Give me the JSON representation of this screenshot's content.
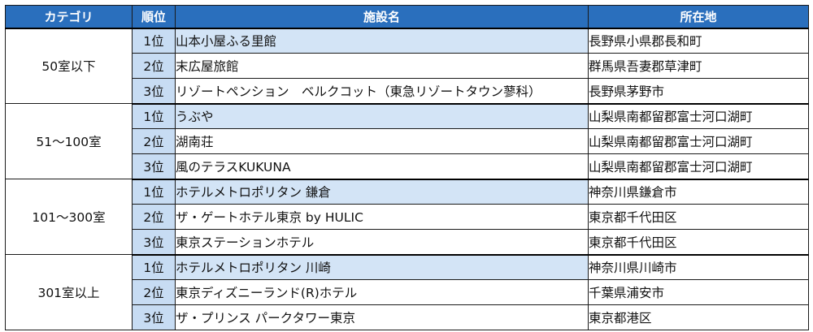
{
  "headers": {
    "category": "カテゴリ",
    "rank": "順位",
    "facility": "施設名",
    "location": "所在地"
  },
  "groups": [
    {
      "category": "50室以下",
      "rows": [
        {
          "rank": "1位",
          "name": "山本小屋ふる里館",
          "location": "長野県小県郡長和町"
        },
        {
          "rank": "2位",
          "name": "末広屋旅館",
          "location": "群馬県吾妻郡草津町"
        },
        {
          "rank": "3位",
          "name": "リゾートペンション　ベルクコット（東急リゾートタウン蓼科）",
          "location": "長野県茅野市"
        }
      ]
    },
    {
      "category": "51～100室",
      "rows": [
        {
          "rank": "1位",
          "name": "うぶや",
          "location": "山梨県南都留郡富士河口湖町"
        },
        {
          "rank": "2位",
          "name": "湖南荘",
          "location": "山梨県南都留郡富士河口湖町"
        },
        {
          "rank": "3位",
          "name": "風のテラスKUKUNA",
          "location": "山梨県南都留郡富士河口湖町"
        }
      ]
    },
    {
      "category": "101～300室",
      "rows": [
        {
          "rank": "1位",
          "name": "ホテルメトロポリタン 鎌倉",
          "location": "神奈川県鎌倉市"
        },
        {
          "rank": "2位",
          "name": "ザ・ゲートホテル東京 by HULIC",
          "location": "東京都千代田区"
        },
        {
          "rank": "3位",
          "name": "東京ステーションホテル",
          "location": "東京都千代田区"
        }
      ]
    },
    {
      "category": "301室以上",
      "rows": [
        {
          "rank": "1位",
          "name": "ホテルメトロポリタン 川崎",
          "location": "神奈川県川崎市"
        },
        {
          "rank": "2位",
          "name": "東京ディズニーランド(R)ホテル",
          "location": "千葉県浦安市"
        },
        {
          "rank": "3位",
          "name": "ザ・プリンス パークタワー東京",
          "location": "東京都港区"
        }
      ]
    }
  ]
}
